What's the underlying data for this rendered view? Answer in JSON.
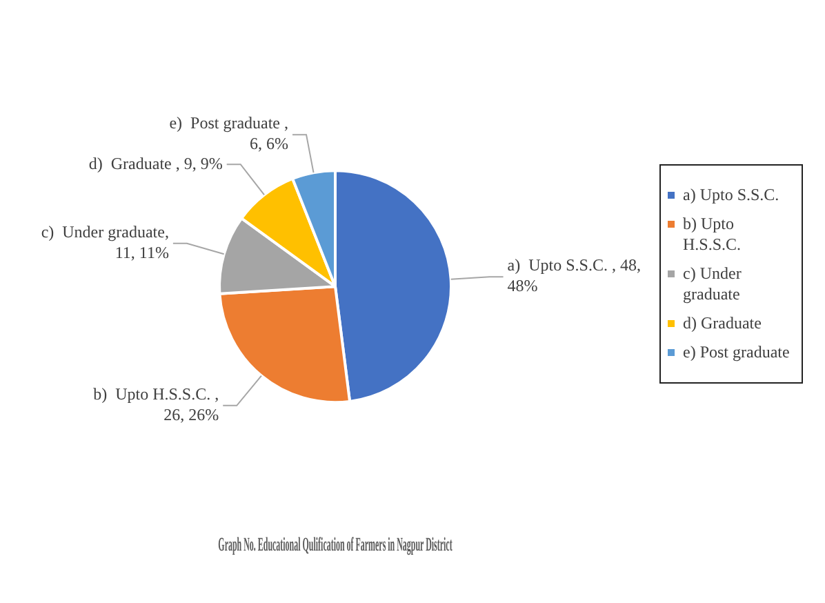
{
  "chart_data": {
    "type": "pie",
    "title": "Graph No. Educational Qulification of Farmers in Nagpur District",
    "categories": [
      "a)  Upto S.S.C.",
      "b)  Upto H.S.S.C.",
      "c)  Under graduate",
      "d)  Graduate",
      "e)  Post graduate"
    ],
    "values": [
      48,
      26,
      11,
      9,
      6
    ],
    "colors": [
      "#4472c4",
      "#ed7d31",
      "#a5a5a5",
      "#ffc000",
      "#5b9bd5"
    ],
    "value_labels": [
      "a)  Upto S.S.C. , 48, 48%",
      "b)  Upto H.S.S.C. , 26, 26%",
      "c)  Under graduate, 11, 11%",
      "d)  Graduate , 9, 9%",
      "e)  Post graduate , 6, 6%"
    ],
    "legend": "right"
  }
}
